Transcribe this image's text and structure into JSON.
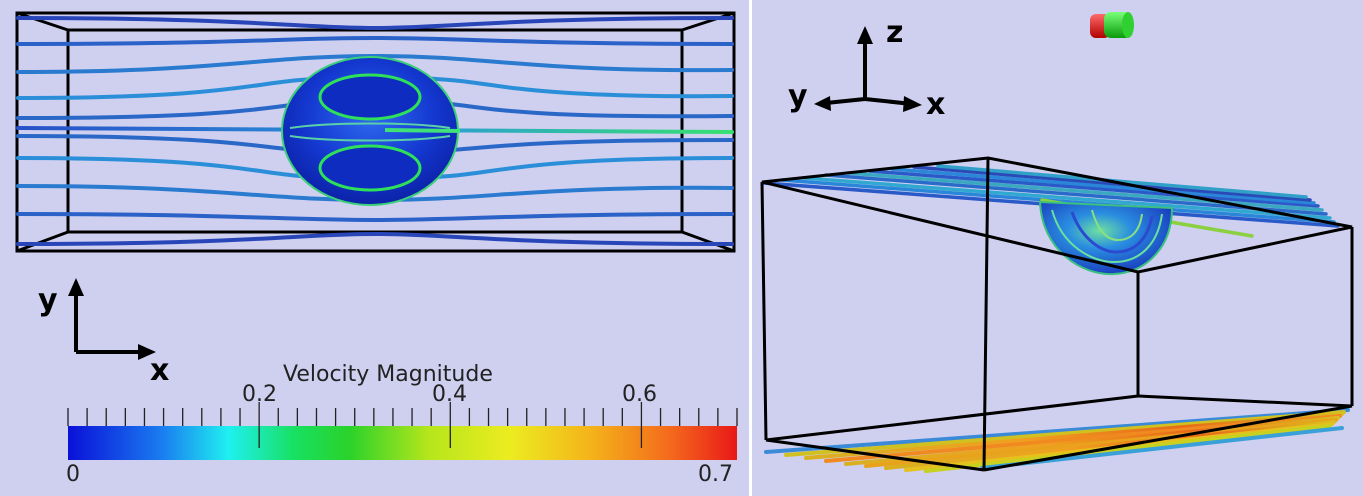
{
  "colorbar": {
    "title": "Velocity Magnitude",
    "labels": [
      "0.2",
      "0.4",
      "0.6"
    ],
    "min_label": "0",
    "max_label": "0.7",
    "min": 0,
    "max": 0.7,
    "colormap": [
      "#0a10d8",
      "#1a7cf0",
      "#1ff0f0",
      "#18e060",
      "#2ad22a",
      "#b6e61c",
      "#ecec20",
      "#f4b41a",
      "#f46a1c",
      "#e81818"
    ]
  },
  "left_axes": {
    "vertical_label": "y",
    "horizontal_label": "x"
  },
  "right_axes": {
    "up_label": "z",
    "left_label": "y",
    "right_label": "x"
  },
  "colors": {
    "background": "#cfcff0",
    "streamline_blue": "#2850c8",
    "frame": "#000000"
  },
  "icons": [
    "axes-triad-icon",
    "orientation-cylinder-icon"
  ]
}
